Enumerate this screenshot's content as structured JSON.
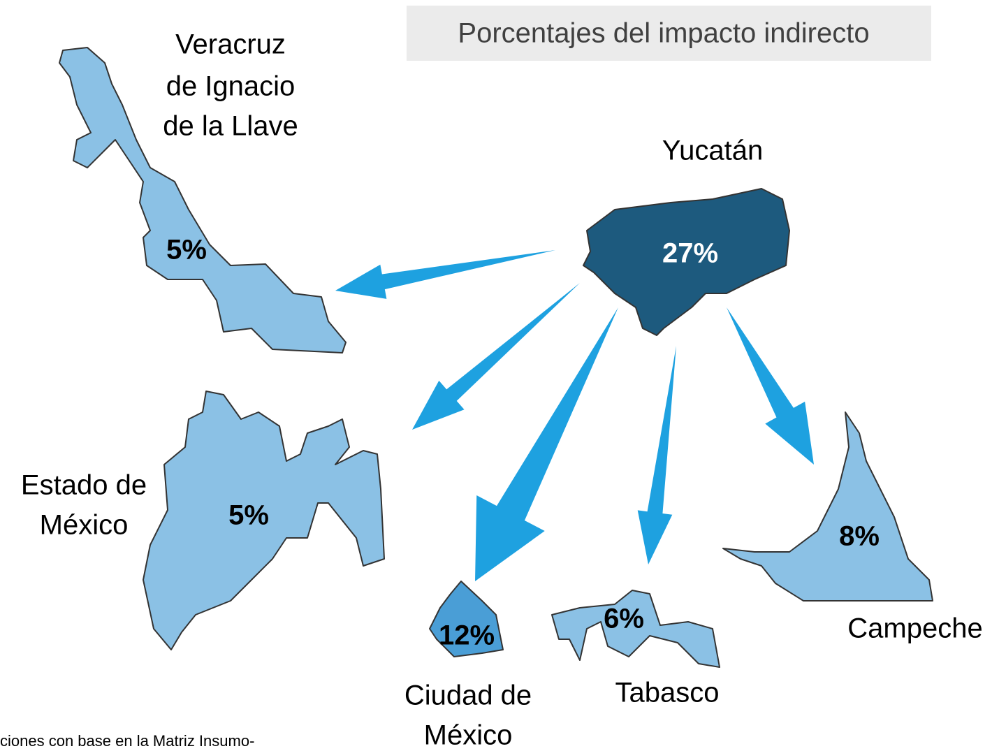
{
  "title": "Porcentajes del impacto indirecto",
  "nodes": [
    {
      "name": [
        "Yucatán"
      ],
      "label": "27%"
    },
    {
      "name": [
        "Veracruz",
        "de Ignacio",
        "de la Llave"
      ],
      "label": "5%"
    },
    {
      "name": [
        "Estado de",
        "México"
      ],
      "label": "5%"
    },
    {
      "name": [
        "Ciudad de",
        "México"
      ],
      "label": "12%"
    },
    {
      "name": [
        "Tabasco"
      ],
      "label": "6%"
    },
    {
      "name": [
        "Campeche"
      ],
      "label": "8%"
    }
  ],
  "footnote": "ciones con base en la Matriz Insumo-"
}
